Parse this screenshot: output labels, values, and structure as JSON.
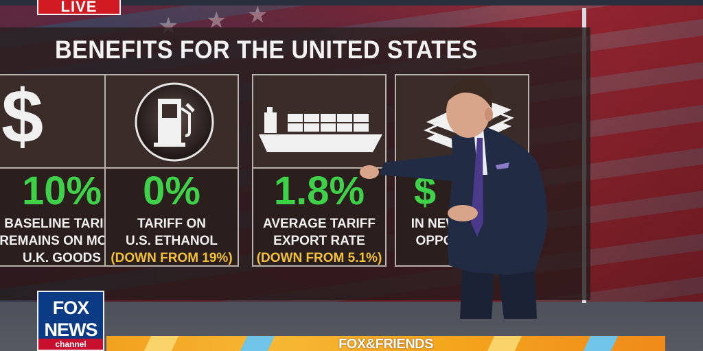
{
  "live_badge": "LIVE",
  "graphic": {
    "headline": "BENEFITS FOR THE UNITED STATES",
    "cards": [
      {
        "icon": "dollar-icon",
        "stat": "10%",
        "lines": [
          "BASELINE TARIFF",
          "REMAINS ON MOST",
          "U.K. GOODS"
        ]
      },
      {
        "icon": "gas-pump-icon",
        "stat": "0%",
        "lines": [
          "TARIFF ON",
          "U.S. ETHANOL"
        ],
        "note": "(DOWN FROM 19%)"
      },
      {
        "icon": "cargo-ship-icon",
        "stat": "1.8%",
        "lines": [
          "AVERAGE TARIFF",
          "EXPORT RATE"
        ],
        "note": "(DOWN FROM 5.1%)"
      },
      {
        "icon": "money-stack-icon",
        "stat": "$",
        "lines": [
          "IN NEW",
          "OPPO"
        ]
      }
    ]
  },
  "network": {
    "line1": "FOX",
    "line2": "NEWS",
    "line3": "channel"
  },
  "show_bar": {
    "title": "FOX&FRIENDS"
  },
  "colors": {
    "stat_green": "#3fd14a",
    "note_yellow": "#f3c13a",
    "fox_blue": "#0b3b84",
    "live_red": "#d11a22",
    "bar_orange": "#f4a61d"
  }
}
